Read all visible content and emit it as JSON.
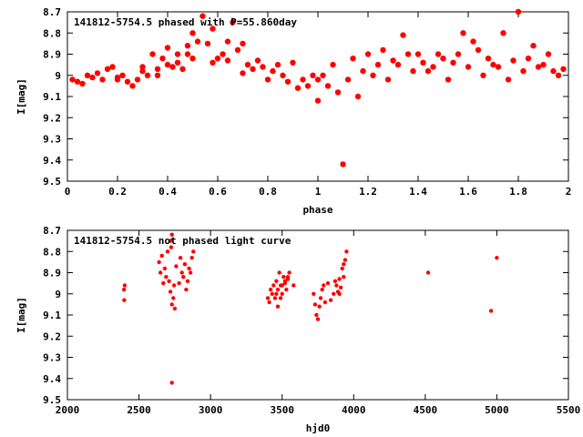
{
  "colors": {
    "points": "#ff0000",
    "axes": "#000000",
    "background": "#ffffff"
  },
  "chart_data": [
    {
      "type": "scatter",
      "title": "141812-5754.5 phased with P=55.860day",
      "xlabel": "phase",
      "ylabel": "I[mag]",
      "xlim": [
        0,
        2
      ],
      "ylim": [
        8.7,
        9.5
      ],
      "y_inverted": true,
      "grid": false,
      "x_ticks": [
        "0",
        "0.2",
        "0.4",
        "0.6",
        "0.8",
        "1",
        "1.2",
        "1.4",
        "1.6",
        "1.8",
        "2"
      ],
      "y_ticks": [
        "8.7",
        "8.8",
        "8.9",
        "9",
        "9.1",
        "9.2",
        "9.3",
        "9.4",
        "9.5"
      ],
      "x": [
        0.02,
        0.04,
        0.06,
        0.08,
        0.1,
        0.12,
        0.14,
        0.16,
        0.18,
        0.2,
        0.2,
        0.22,
        0.24,
        0.26,
        0.28,
        0.3,
        0.3,
        0.32,
        0.34,
        0.36,
        0.36,
        0.38,
        0.4,
        0.4,
        0.42,
        0.44,
        0.44,
        0.46,
        0.48,
        0.48,
        0.5,
        0.5,
        0.52,
        0.54,
        0.56,
        0.58,
        0.58,
        0.6,
        0.62,
        0.64,
        0.64,
        0.66,
        0.68,
        0.7,
        0.7,
        0.72,
        0.74,
        0.76,
        0.78,
        0.8,
        0.82,
        0.84,
        0.86,
        0.88,
        0.9,
        0.92,
        0.94,
        0.96,
        0.98,
        1.0,
        1.0,
        1.02,
        1.04,
        1.06,
        1.08,
        1.1,
        1.12,
        1.14,
        1.16,
        1.18,
        1.2,
        1.22,
        1.24,
        1.26,
        1.28,
        1.3,
        1.32,
        1.34,
        1.36,
        1.38,
        1.4,
        1.42,
        1.44,
        1.46,
        1.48,
        1.5,
        1.52,
        1.54,
        1.56,
        1.58,
        1.6,
        1.62,
        1.64,
        1.66,
        1.68,
        1.7,
        1.72,
        1.74,
        1.76,
        1.78,
        1.8,
        1.82,
        1.84,
        1.86,
        1.88,
        1.9,
        1.92,
        1.94,
        1.96,
        1.98
      ],
      "y": [
        9.02,
        9.03,
        9.04,
        9.0,
        9.01,
        8.99,
        9.02,
        8.97,
        8.96,
        9.01,
        9.02,
        9.0,
        9.03,
        9.05,
        9.02,
        8.96,
        8.98,
        9.0,
        8.9,
        8.97,
        9.0,
        8.92,
        8.95,
        8.87,
        8.96,
        8.9,
        8.94,
        8.97,
        8.9,
        8.86,
        8.8,
        8.92,
        8.84,
        8.72,
        8.85,
        8.78,
        8.94,
        8.92,
        8.9,
        8.84,
        8.93,
        8.75,
        8.88,
        8.99,
        8.85,
        8.95,
        8.97,
        8.93,
        8.96,
        9.02,
        8.98,
        8.95,
        9.0,
        9.03,
        8.94,
        9.06,
        9.02,
        9.05,
        9.0,
        9.12,
        9.02,
        9.0,
        9.05,
        8.95,
        9.08,
        9.42,
        9.02,
        8.92,
        9.1,
        8.98,
        8.9,
        9.0,
        8.95,
        8.88,
        9.02,
        8.93,
        8.95,
        8.81,
        8.9,
        8.98,
        8.9,
        8.94,
        8.98,
        8.96,
        8.9,
        8.92,
        9.02,
        8.94,
        8.9,
        8.8,
        8.96,
        8.84,
        8.88,
        9.0,
        8.92,
        8.95,
        8.96,
        8.8,
        9.02,
        8.93,
        8.7,
        8.98,
        8.92,
        8.86,
        8.96,
        8.95,
        8.9,
        8.98,
        9.0,
        8.97
      ]
    },
    {
      "type": "scatter",
      "title": "141812-5754.5 not phased light curve",
      "xlabel": "hjd0",
      "ylabel": "I[mag]",
      "xlim": [
        2000,
        5500
      ],
      "ylim": [
        8.7,
        9.5
      ],
      "y_inverted": true,
      "grid": false,
      "x_ticks": [
        "2000",
        "2500",
        "3000",
        "3500",
        "4000",
        "4500",
        "5000",
        "5500"
      ],
      "y_ticks": [
        "8.7",
        "8.8",
        "8.9",
        "9",
        "9.1",
        "9.2",
        "9.3",
        "9.4",
        "9.5"
      ],
      "x": [
        2395,
        2397,
        2400,
        2640,
        2650,
        2660,
        2670,
        2680,
        2690,
        2700,
        2710,
        2720,
        2725,
        2730,
        2740,
        2745,
        2750,
        2720,
        2730,
        2760,
        2780,
        2790,
        2800,
        2810,
        2820,
        2830,
        2840,
        2850,
        2860,
        2870,
        2880,
        2730,
        3400,
        3410,
        3420,
        3430,
        3440,
        3450,
        3460,
        3470,
        3480,
        3490,
        3500,
        3510,
        3520,
        3530,
        3540,
        3550,
        3460,
        3470,
        3490,
        3500,
        3520,
        3540,
        3580,
        3720,
        3730,
        3740,
        3750,
        3760,
        3770,
        3780,
        3790,
        3800,
        3820,
        3840,
        3860,
        3870,
        3880,
        3890,
        3900,
        3910,
        3920,
        3930,
        3940,
        3950,
        3900,
        3930,
        4520,
        4960,
        5000
      ],
      "y": [
        8.98,
        9.03,
        8.96,
        8.85,
        8.9,
        8.82,
        8.95,
        8.88,
        8.92,
        8.8,
        8.94,
        8.75,
        8.78,
        9.05,
        9.02,
        8.96,
        9.07,
        8.99,
        8.72,
        8.87,
        8.95,
        8.83,
        8.9,
        8.92,
        8.86,
        8.98,
        8.94,
        8.88,
        8.9,
        8.83,
        8.8,
        9.42,
        9.02,
        9.04,
        8.98,
        9.0,
        8.96,
        9.02,
        8.94,
        9.06,
        8.9,
        8.96,
        9.0,
        8.92,
        8.95,
        8.98,
        8.93,
        8.9,
        9.0,
        8.98,
        9.02,
        8.96,
        8.94,
        8.92,
        8.96,
        9.0,
        9.05,
        9.1,
        9.12,
        9.06,
        9.02,
        8.98,
        8.96,
        9.04,
        8.95,
        9.03,
        9.0,
        8.94,
        8.96,
        8.99,
        8.93,
        8.97,
        8.88,
        8.92,
        8.84,
        8.8,
        9.0,
        8.86,
        8.9,
        9.08,
        8.83
      ]
    }
  ]
}
